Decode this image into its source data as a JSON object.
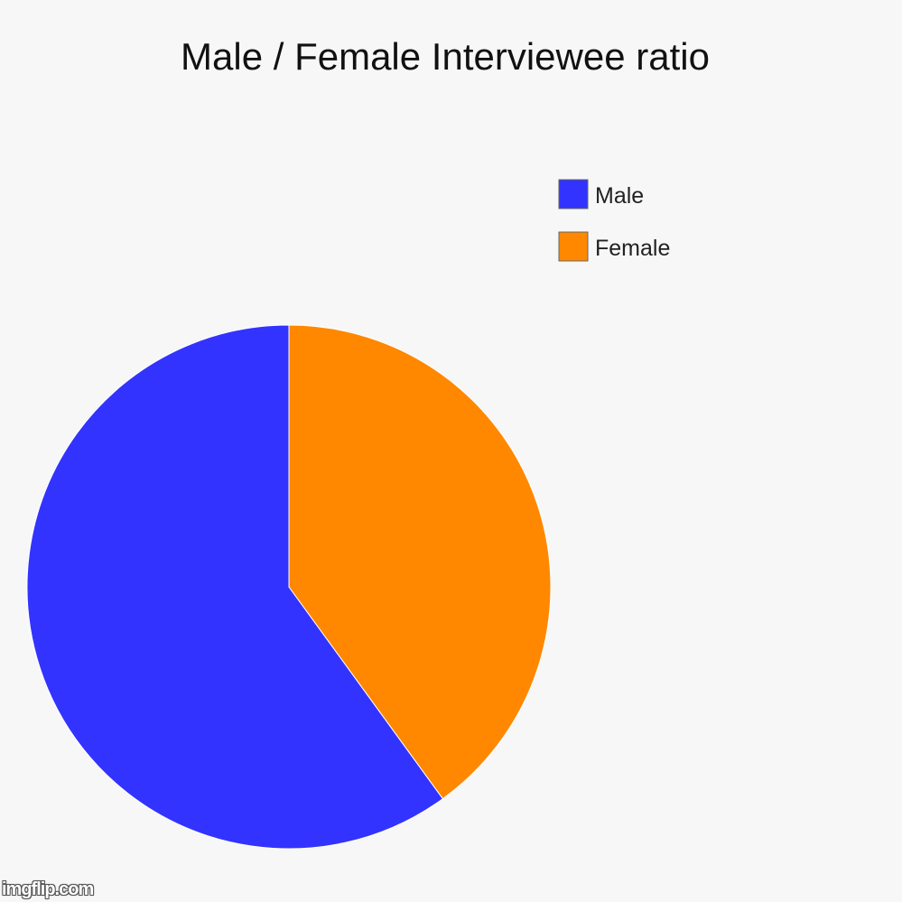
{
  "chart_data": {
    "type": "pie",
    "title": "Male / Female Interviewee ratio",
    "legend_position": "right",
    "slices": [
      {
        "label": "Male",
        "value": 60,
        "color": "#3333ff"
      },
      {
        "label": "Female",
        "value": 40,
        "color": "#ff8800"
      }
    ]
  },
  "watermark": "imgflip.com"
}
